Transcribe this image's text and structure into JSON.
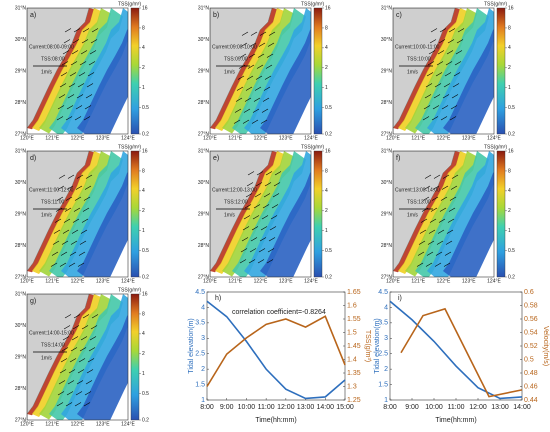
{
  "maps": {
    "lat_ticks": [
      "27°N",
      "28°N",
      "29°N",
      "30°N",
      "31°N"
    ],
    "lon_ticks": [
      "120°E",
      "121°E",
      "122°E",
      "123°E",
      "124°E"
    ],
    "colorbar": {
      "label": "TSS(g/m³)",
      "ticks": [
        0.2,
        0.5,
        1,
        2,
        4,
        8,
        16
      ]
    },
    "panels": [
      {
        "label": "a)",
        "current": "Current:08:00-09:00",
        "tss": "TSS:08:00",
        "scale": "1m/s"
      },
      {
        "label": "b)",
        "current": "Current:09:00-10:00",
        "tss": "TSS:09:00",
        "scale": "1m/s"
      },
      {
        "label": "c)",
        "current": "Current:10:00-11:00",
        "tss": "TSS:10:00",
        "scale": "1m/s"
      },
      {
        "label": "d)",
        "current": "Current:11:00-12:00",
        "tss": "TSS:11:00",
        "scale": "1m/s"
      },
      {
        "label": "e)",
        "current": "Current:12:00-13:00",
        "tss": "TSS:12:00",
        "scale": "1m/s"
      },
      {
        "label": "f)",
        "current": "Current:13:00-14:00",
        "tss": "TSS:13:00",
        "scale": "1m/s"
      },
      {
        "label": "g)",
        "current": "Current:14:00-15:00",
        "tss": "TSS:14:00",
        "scale": "1m/s"
      }
    ]
  },
  "chart_data": [
    {
      "type": "line",
      "label": "h)",
      "annotation": "correlation coefficient=-0.8264",
      "xlabel": "Time(hh:mm)",
      "ylabel": "Tidal elevation(m)",
      "y2label": "TSS(g/m³)",
      "xlim": [
        8,
        15
      ],
      "xticks": [
        {
          "value": 8,
          "label": "8:00"
        },
        {
          "value": 9,
          "label": "9:00"
        },
        {
          "value": 10,
          "label": "10:00"
        },
        {
          "value": 11,
          "label": "11:00"
        },
        {
          "value": 12,
          "label": "12:00"
        },
        {
          "value": 13,
          "label": "13:00"
        },
        {
          "value": 14,
          "label": "14:00"
        },
        {
          "value": 15,
          "label": "15:00"
        }
      ],
      "ylim": [
        1,
        4.5
      ],
      "yticks": [
        1,
        1.5,
        2,
        2.5,
        3,
        3.5,
        4,
        4.5
      ],
      "y2lim": [
        1.25,
        1.65
      ],
      "y2ticks": [
        1.25,
        1.3,
        1.35,
        1.4,
        1.45,
        1.5,
        1.55,
        1.6,
        1.65
      ],
      "series": [
        {
          "color": "#2e6fbd",
          "x": [
            8,
            9,
            10,
            11,
            12,
            13,
            14,
            15
          ],
          "values": [
            4.2,
            3.7,
            2.9,
            2.0,
            1.35,
            1.05,
            1.1,
            1.65
          ]
        },
        {
          "color": "#b8651b",
          "axis": "y2",
          "x": [
            8,
            9,
            10,
            11,
            12,
            13,
            14,
            15
          ],
          "values": [
            1.3,
            1.42,
            1.48,
            1.53,
            1.55,
            1.52,
            1.56,
            1.38
          ]
        }
      ]
    },
    {
      "type": "line",
      "label": "i)",
      "xlabel": "Time(hh:mm)",
      "ylabel": "Tidal elevation(m)",
      "y2label": "Velocity(m/s)",
      "xlim": [
        8,
        14
      ],
      "xticks": [
        {
          "value": 8,
          "label": "8:00"
        },
        {
          "value": 9,
          "label": "9:00"
        },
        {
          "value": 10,
          "label": "10:00"
        },
        {
          "value": 11,
          "label": "11:00"
        },
        {
          "value": 12,
          "label": "12:00"
        },
        {
          "value": 13,
          "label": "13:00"
        },
        {
          "value": 14,
          "label": "14:00"
        }
      ],
      "ylim": [
        1,
        4.5
      ],
      "yticks": [
        1,
        1.5,
        2,
        2.5,
        3,
        3.5,
        4,
        4.5
      ],
      "y2lim": [
        0.44,
        0.6
      ],
      "y2ticks": [
        0.44,
        0.46,
        0.48,
        0.5,
        0.52,
        0.54,
        0.56,
        0.58,
        0.6
      ],
      "series": [
        {
          "color": "#2e6fbd",
          "x": [
            8,
            9,
            10,
            11,
            12,
            13,
            14
          ],
          "values": [
            4.2,
            3.6,
            2.9,
            2.1,
            1.4,
            1.05,
            1.1
          ]
        },
        {
          "color": "#b8651b",
          "axis": "y2",
          "x": [
            8.5,
            9.5,
            10.5,
            11.5,
            12.5,
            14
          ],
          "values": [
            0.51,
            0.565,
            0.575,
            0.51,
            0.445,
            0.455
          ]
        }
      ]
    }
  ]
}
